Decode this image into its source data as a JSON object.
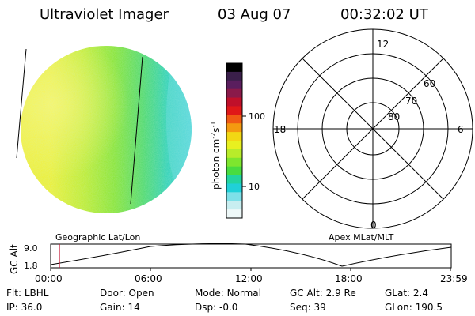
{
  "header": {
    "instrument": "Ultraviolet Imager",
    "date": "03 Aug 07",
    "time": "00:32:02 UT"
  },
  "colorbar": {
    "unit_label": "photon cm",
    "unit_exp1": "-2",
    "unit_mid": "s",
    "unit_exp2": "-1",
    "tick_high": "100",
    "tick_low": "10",
    "colors": [
      "#000000",
      "#3a1f4a",
      "#5a1e5e",
      "#8a1a4a",
      "#c0102a",
      "#e01818",
      "#f05a14",
      "#f49a10",
      "#f2d814",
      "#e8f020",
      "#b8ec2a",
      "#7ee62e",
      "#48dc40",
      "#22d4a0",
      "#20d0d8",
      "#7ee0e8",
      "#c8eef0",
      "#eef8f8"
    ]
  },
  "polar": {
    "mlt_labels": {
      "top": "12",
      "left": "18",
      "right": "6",
      "bottom": "0"
    },
    "lat_labels": [
      "60",
      "70",
      "80"
    ]
  },
  "panel_labels": {
    "left": "Geographic Lat/Lon",
    "right": "Apex MLat/MLT"
  },
  "altitude_plot": {
    "title": "GC Alt",
    "y_max": "9.0",
    "y_min": "1.8",
    "x_ticks": [
      "00:00",
      "06:00",
      "12:00",
      "18:00",
      "23:59"
    ],
    "current_time_fraction": 0.022
  },
  "info": {
    "rows": [
      [
        {
          "name": "flt",
          "label": "Flt:",
          "value": "LBHL"
        },
        {
          "name": "door",
          "label": "Door:",
          "value": "Open"
        },
        {
          "name": "mode",
          "label": "Mode:",
          "value": "Normal"
        },
        {
          "name": "gc-alt",
          "label": "GC Alt:",
          "value": "2.9 Re"
        },
        {
          "name": "glat",
          "label": "GLat:",
          "value": "2.4"
        }
      ],
      [
        {
          "name": "ip",
          "label": "IP:",
          "value": "36.0"
        },
        {
          "name": "gain",
          "label": "Gain:",
          "value": "14"
        },
        {
          "name": "dsp",
          "label": "Dsp:",
          "value": "-0.0"
        },
        {
          "name": "seq",
          "label": "Seq:",
          "value": "39"
        },
        {
          "name": "glon",
          "label": "GLon:",
          "value": "190.5"
        }
      ]
    ]
  }
}
